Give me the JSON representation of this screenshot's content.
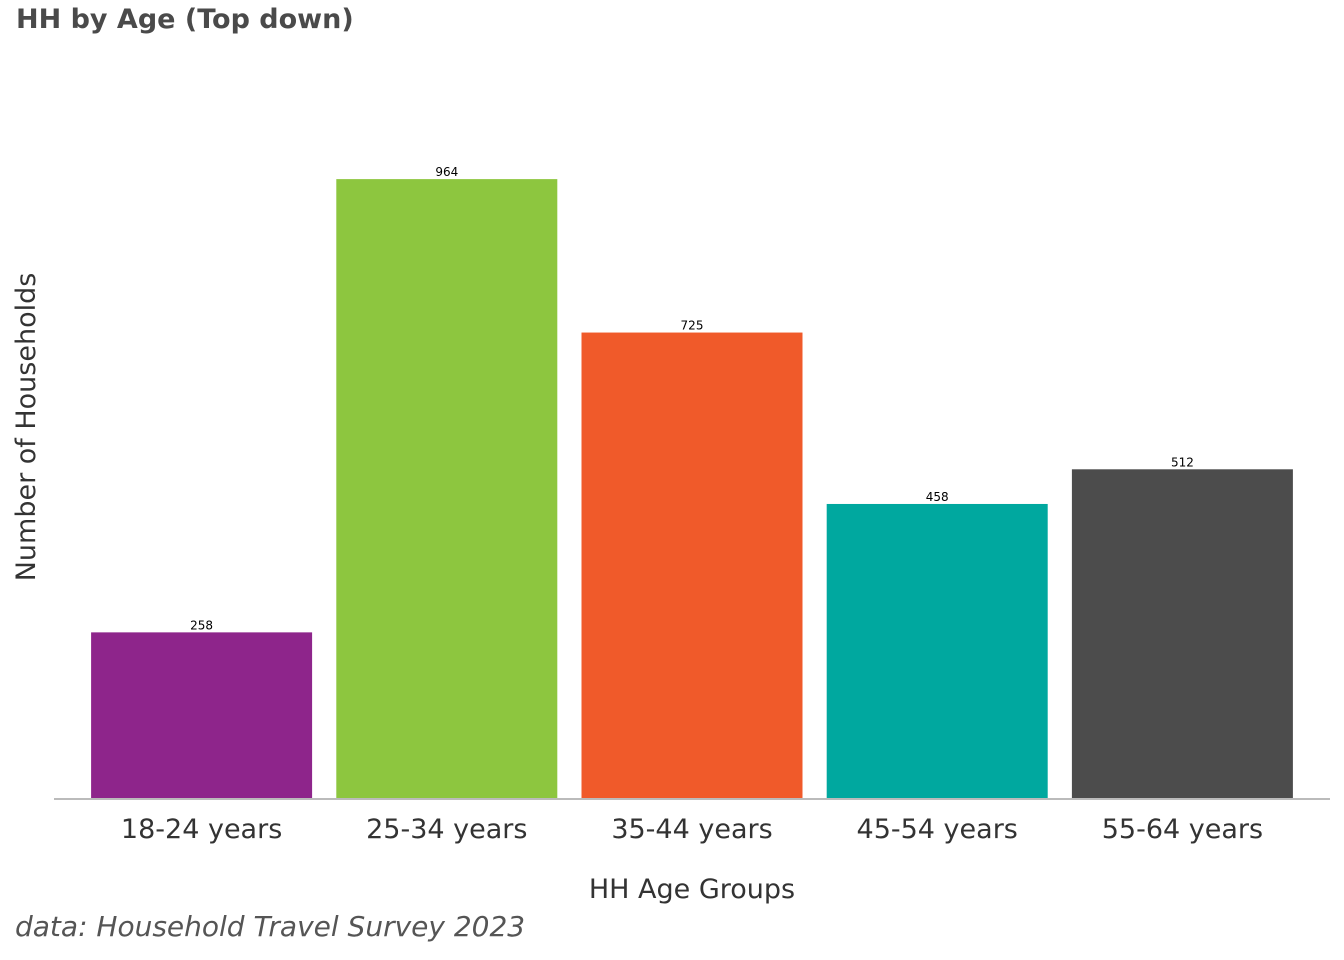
{
  "chart_data": {
    "type": "bar",
    "title": "HH by Age (Top down)",
    "xlabel": "HH Age Groups",
    "ylabel": "Number of Households",
    "caption": "data: Household Travel Survey 2023",
    "categories": [
      "18-24 years",
      "25-34 years",
      "35-44 years",
      "45-54 years",
      "55-64 years"
    ],
    "values": [
      258,
      964,
      725,
      458,
      512
    ],
    "colors": [
      "#8e258b",
      "#8dc63f",
      "#f05a2a",
      "#00a89f",
      "#4c4c4c"
    ],
    "ylim": [
      0,
      1000
    ],
    "grid": false,
    "legend": "none"
  }
}
